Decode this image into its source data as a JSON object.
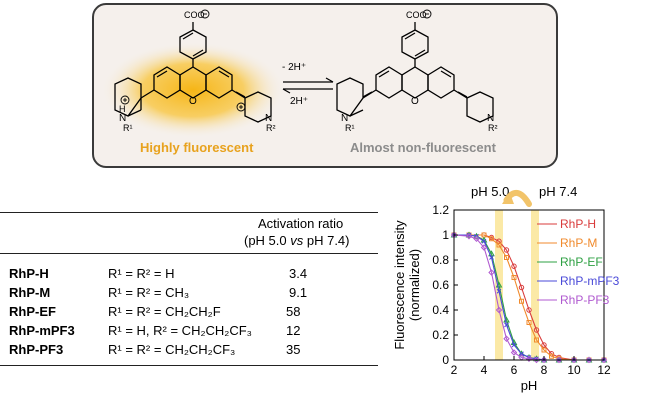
{
  "scheme": {
    "left_label": "Highly fluorescent",
    "right_label": "Almost non-fluorescent",
    "forward_label": "- 2H⁺",
    "reverse_label": "2H⁺",
    "carboxylate": "COO",
    "r1": "R¹",
    "r2": "R²",
    "h": "H",
    "n": "N",
    "o": "O"
  },
  "table": {
    "header_line1": "Activation ratio",
    "header_line2": "(pH 5.0 vs pH 7.4)",
    "rows": [
      {
        "name": "RhP-H",
        "formula": "R¹ = R² = H",
        "ratio": "3.4"
      },
      {
        "name": "RhP-M",
        "formula": "R¹ = R² = CH₃",
        "ratio": "9.1"
      },
      {
        "name": "RhP-EF",
        "formula": "R¹ = R² = CH₂CH₂F",
        "ratio": "58"
      },
      {
        "name": "RhP-mPF3",
        "formula": "R¹ = H, R² = CH₂CH₂CF₃",
        "ratio": "12"
      },
      {
        "name": "RhP-PF3",
        "formula": "R¹ = R² = CH₂CH₂CF₃",
        "ratio": "35"
      }
    ]
  },
  "chart_data": {
    "type": "line",
    "xlabel": "pH",
    "ylabel": "Fluorescence intensity (normalized)",
    "xlim": [
      2,
      12
    ],
    "ylim": [
      0,
      1.2
    ],
    "xticks": [
      2,
      4,
      6,
      8,
      10,
      12
    ],
    "yticks": [
      0,
      0.2,
      0.4,
      0.6,
      0.8,
      1,
      1.2
    ],
    "annotations": [
      {
        "text": "pH 5.0",
        "x": 5.0
      },
      {
        "text": "pH 7.4",
        "x": 7.4
      }
    ],
    "legend_position": "right",
    "series": [
      {
        "name": "RhP-H",
        "color": "#d93b3b",
        "marker": "circle",
        "x": [
          2,
          3,
          4,
          4.5,
          5,
          5.5,
          6,
          6.5,
          7,
          7.5,
          8,
          8.5,
          9,
          10,
          11,
          12
        ],
        "y": [
          1,
          1,
          1,
          0.98,
          0.95,
          0.88,
          0.75,
          0.58,
          0.4,
          0.24,
          0.12,
          0.05,
          0.02,
          0,
          0,
          0
        ]
      },
      {
        "name": "RhP-M",
        "color": "#f08a2c",
        "marker": "square",
        "x": [
          2,
          3,
          4,
          4.5,
          5,
          5.5,
          6,
          6.5,
          7,
          7.5,
          8,
          8.5,
          9,
          10,
          11,
          12
        ],
        "y": [
          1,
          1,
          1,
          0.97,
          0.92,
          0.82,
          0.66,
          0.47,
          0.3,
          0.16,
          0.08,
          0.03,
          0.01,
          0,
          0,
          0
        ]
      },
      {
        "name": "RhP-EF",
        "color": "#2ea043",
        "marker": "triangle",
        "x": [
          2,
          3,
          3.5,
          4,
          4.5,
          5,
          5.5,
          6,
          6.5,
          7,
          7.5,
          8,
          9,
          10,
          11,
          12
        ],
        "y": [
          1,
          1,
          0.99,
          0.96,
          0.85,
          0.6,
          0.32,
          0.14,
          0.05,
          0.02,
          0.01,
          0,
          0,
          0,
          0,
          0
        ]
      },
      {
        "name": "RhP-mPF3",
        "color": "#4a4ad8",
        "marker": "x",
        "x": [
          2,
          3,
          3.5,
          4,
          4.5,
          5,
          5.5,
          6,
          6.5,
          7,
          7.5,
          8,
          9,
          10,
          11,
          12
        ],
        "y": [
          1,
          1,
          0.99,
          0.95,
          0.82,
          0.55,
          0.28,
          0.12,
          0.05,
          0.02,
          0.01,
          0,
          0,
          0,
          0,
          0
        ]
      },
      {
        "name": "RhP-PF3",
        "color": "#b05ad0",
        "marker": "diamond",
        "x": [
          2,
          3,
          3.5,
          4,
          4.5,
          5,
          5.5,
          6,
          6.5,
          7,
          7.5,
          8,
          9,
          10,
          11,
          12
        ],
        "y": [
          1,
          0.99,
          0.97,
          0.9,
          0.7,
          0.4,
          0.17,
          0.06,
          0.02,
          0.01,
          0,
          0,
          0,
          0,
          0,
          0
        ]
      }
    ]
  },
  "colors": {
    "fluorescent_glow": "#f6b516",
    "highlight_band": "#fbe9a6",
    "curved_arrow": "#f2c46a"
  }
}
